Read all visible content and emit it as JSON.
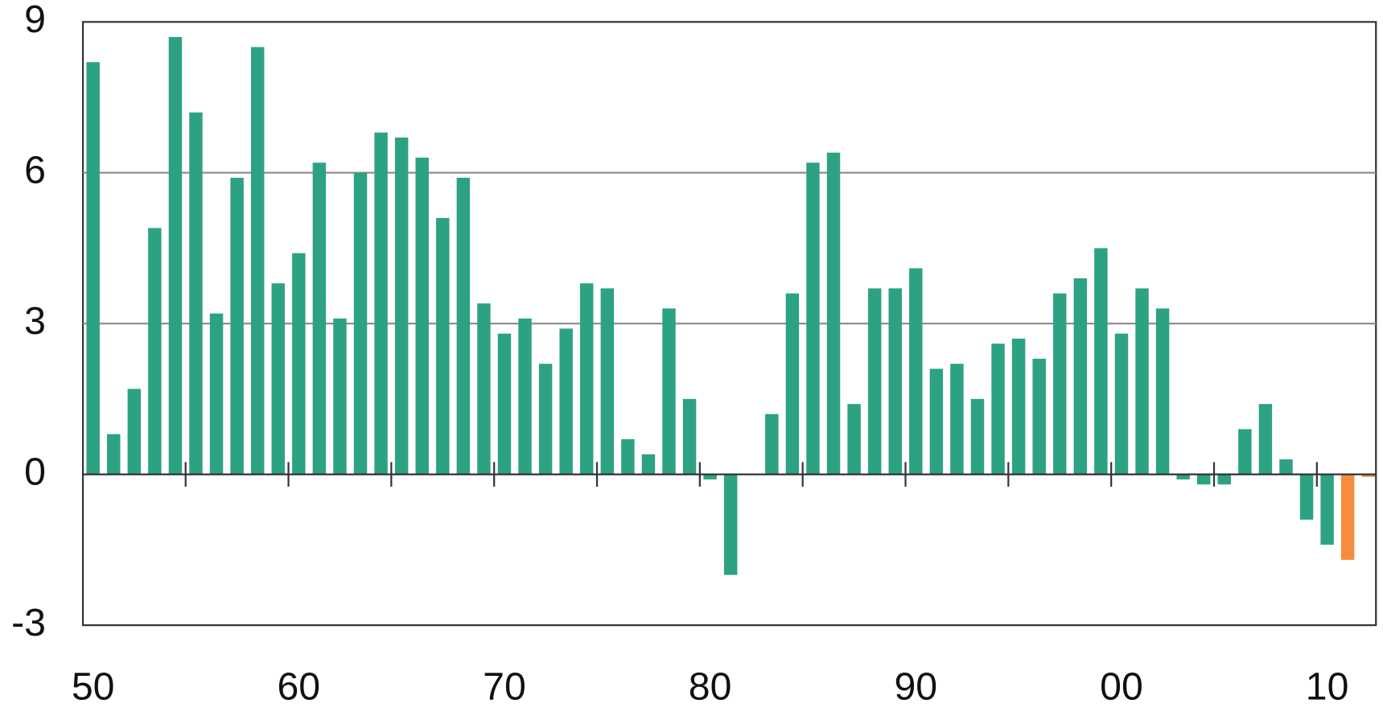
{
  "chart_data": {
    "type": "bar",
    "categories": [
      "50",
      null,
      null,
      null,
      null,
      null,
      null,
      null,
      null,
      null,
      "60",
      null,
      null,
      null,
      null,
      null,
      null,
      null,
      null,
      null,
      "70",
      null,
      null,
      null,
      null,
      null,
      null,
      null,
      null,
      null,
      "80",
      null,
      null,
      null,
      null,
      null,
      null,
      null,
      null,
      null,
      "90",
      null,
      null,
      null,
      null,
      null,
      null,
      null,
      null,
      null,
      "00",
      null,
      null,
      null,
      null,
      null,
      null,
      null,
      null,
      null,
      "10",
      null,
      null
    ],
    "values": [
      8.2,
      0.8,
      1.7,
      4.9,
      8.7,
      7.2,
      3.2,
      5.9,
      8.5,
      3.8,
      4.4,
      6.2,
      3.1,
      6.0,
      6.8,
      6.7,
      6.3,
      5.1,
      5.9,
      3.4,
      2.8,
      3.1,
      2.2,
      2.9,
      3.8,
      3.7,
      0.7,
      0.4,
      3.3,
      1.5,
      -0.1,
      -2.0,
      0,
      1.2,
      3.6,
      6.2,
      6.4,
      1.4,
      3.7,
      3.7,
      4.1,
      2.1,
      2.2,
      1.5,
      2.6,
      2.7,
      2.3,
      3.6,
      3.9,
      4.5,
      2.8,
      3.7,
      3.3,
      -0.1,
      -0.2,
      -0.2,
      0.9,
      1.4,
      0.3,
      -0.9,
      -1.4,
      -1.7,
      -0.05
    ],
    "colors": [
      "#2ca283",
      "#2ca283",
      "#2ca283",
      "#2ca283",
      "#2ca283",
      "#2ca283",
      "#2ca283",
      "#2ca283",
      "#2ca283",
      "#2ca283",
      "#2ca283",
      "#2ca283",
      "#2ca283",
      "#2ca283",
      "#2ca283",
      "#2ca283",
      "#2ca283",
      "#2ca283",
      "#2ca283",
      "#2ca283",
      "#2ca283",
      "#2ca283",
      "#2ca283",
      "#2ca283",
      "#2ca283",
      "#2ca283",
      "#2ca283",
      "#2ca283",
      "#2ca283",
      "#2ca283",
      "#2ca283",
      "#2ca283",
      "#2ca283",
      "#2ca283",
      "#2ca283",
      "#2ca283",
      "#2ca283",
      "#2ca283",
      "#2ca283",
      "#2ca283",
      "#2ca283",
      "#2ca283",
      "#2ca283",
      "#2ca283",
      "#2ca283",
      "#2ca283",
      "#2ca283",
      "#2ca283",
      "#2ca283",
      "#2ca283",
      "#2ca283",
      "#2ca283",
      "#2ca283",
      "#2ca283",
      "#2ca283",
      "#2ca283",
      "#2ca283",
      "#2ca283",
      "#2ca283",
      "#2ca283",
      "#2ca283",
      "#f58d3c",
      "#f58d3c"
    ],
    "ylim": [
      -3,
      9
    ],
    "yticks": [
      -3,
      0,
      3,
      6,
      9
    ],
    "grid": true
  }
}
